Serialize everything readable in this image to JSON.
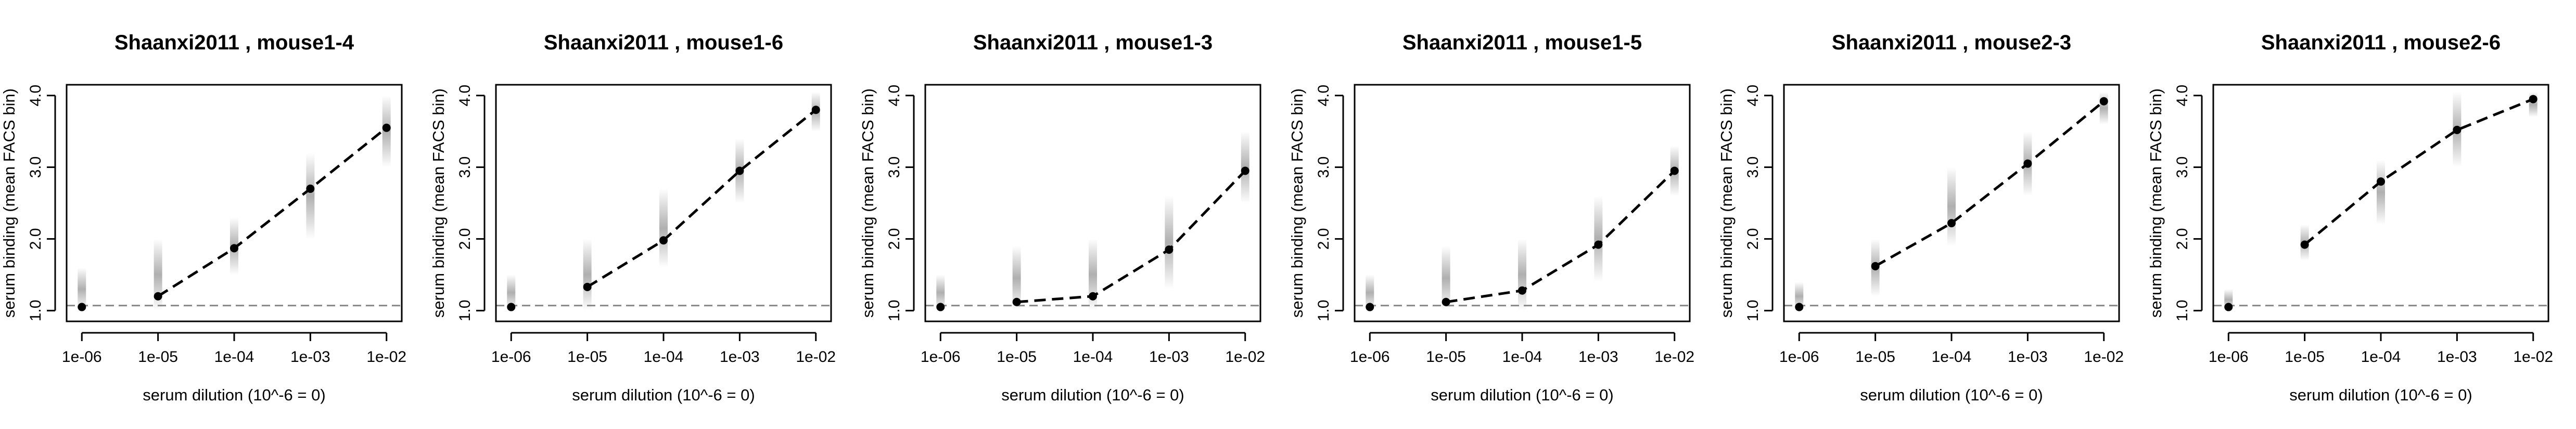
{
  "colors": {
    "line": "#000000",
    "point": "#000000",
    "reference": "#888888",
    "distribution": "#6e6e6e",
    "frame": "#000000",
    "background": "#ffffff"
  },
  "chart_data": [
    {
      "type": "line",
      "title": "Shaanxi2011 , mouse1-4",
      "xlabel": "serum dilution (10^-6 = 0)",
      "ylabel": "serum binding (mean FACS bin)",
      "x": [
        -6,
        -5,
        -4,
        -3,
        -2
      ],
      "x_tick_labels": [
        "1e-06",
        "1e-05",
        "1e-04",
        "1e-03",
        "1e-02"
      ],
      "y_ticks": [
        "1.0",
        "2.0",
        "3.0",
        "4.0"
      ],
      "xlim": [
        -6.2,
        -1.8
      ],
      "ylim": [
        0.85,
        4.15
      ],
      "series": [
        {
          "values": [
            1.05,
            1.2,
            1.87,
            2.7,
            3.55
          ],
          "ranges": [
            [
              1.0,
              1.6
            ],
            [
              1.0,
              2.0
            ],
            [
              1.5,
              2.3
            ],
            [
              2.0,
              3.2
            ],
            [
              3.0,
              4.0
            ]
          ]
        }
      ],
      "reference_y": 1.07,
      "grid": false
    },
    {
      "type": "line",
      "title": "Shaanxi2011 , mouse1-6",
      "xlabel": "serum dilution (10^-6 = 0)",
      "ylabel": "serum binding (mean FACS bin)",
      "x": [
        -6,
        -5,
        -4,
        -3,
        -2
      ],
      "x_tick_labels": [
        "1e-06",
        "1e-05",
        "1e-04",
        "1e-03",
        "1e-02"
      ],
      "y_ticks": [
        "1.0",
        "2.0",
        "3.0",
        "4.0"
      ],
      "xlim": [
        -6.2,
        -1.8
      ],
      "ylim": [
        0.85,
        4.15
      ],
      "series": [
        {
          "values": [
            1.05,
            1.33,
            1.98,
            2.95,
            3.8
          ],
          "ranges": [
            [
              1.0,
              1.5
            ],
            [
              1.0,
              2.0
            ],
            [
              1.6,
              2.7
            ],
            [
              2.5,
              3.4
            ],
            [
              3.5,
              4.05
            ]
          ]
        }
      ],
      "reference_y": 1.07,
      "grid": false
    },
    {
      "type": "line",
      "title": "Shaanxi2011 , mouse1-3",
      "xlabel": "serum dilution (10^-6 = 0)",
      "ylabel": "serum binding (mean FACS bin)",
      "x": [
        -6,
        -5,
        -4,
        -3,
        -2
      ],
      "x_tick_labels": [
        "1e-06",
        "1e-05",
        "1e-04",
        "1e-03",
        "1e-02"
      ],
      "y_ticks": [
        "1.0",
        "2.0",
        "3.0",
        "4.0"
      ],
      "xlim": [
        -6.2,
        -1.8
      ],
      "ylim": [
        0.85,
        4.15
      ],
      "series": [
        {
          "values": [
            1.05,
            1.12,
            1.2,
            1.85,
            2.95
          ],
          "ranges": [
            [
              1.0,
              1.5
            ],
            [
              1.0,
              1.9
            ],
            [
              1.0,
              2.0
            ],
            [
              1.3,
              2.6
            ],
            [
              2.5,
              3.5
            ]
          ]
        }
      ],
      "reference_y": 1.07,
      "grid": false
    },
    {
      "type": "line",
      "title": "Shaanxi2011 , mouse1-5",
      "xlabel": "serum dilution (10^-6 = 0)",
      "ylabel": "serum binding (mean FACS bin)",
      "x": [
        -6,
        -5,
        -4,
        -3,
        -2
      ],
      "x_tick_labels": [
        "1e-06",
        "1e-05",
        "1e-04",
        "1e-03",
        "1e-02"
      ],
      "y_ticks": [
        "1.0",
        "2.0",
        "3.0",
        "4.0"
      ],
      "xlim": [
        -6.2,
        -1.8
      ],
      "ylim": [
        0.85,
        4.15
      ],
      "series": [
        {
          "values": [
            1.05,
            1.12,
            1.28,
            1.92,
            2.95
          ],
          "ranges": [
            [
              1.0,
              1.5
            ],
            [
              1.0,
              1.9
            ],
            [
              1.0,
              2.0
            ],
            [
              1.4,
              2.6
            ],
            [
              2.6,
              3.3
            ]
          ]
        }
      ],
      "reference_y": 1.07,
      "grid": false
    },
    {
      "type": "line",
      "title": "Shaanxi2011 , mouse2-3",
      "xlabel": "serum dilution (10^-6 = 0)",
      "ylabel": "serum binding (mean FACS bin)",
      "x": [
        -6,
        -5,
        -4,
        -3,
        -2
      ],
      "x_tick_labels": [
        "1e-06",
        "1e-05",
        "1e-04",
        "1e-03",
        "1e-02"
      ],
      "y_ticks": [
        "1.0",
        "2.0",
        "3.0",
        "4.0"
      ],
      "xlim": [
        -6.2,
        -1.8
      ],
      "ylim": [
        0.85,
        4.15
      ],
      "series": [
        {
          "values": [
            1.05,
            1.62,
            2.22,
            3.05,
            3.92
          ],
          "ranges": [
            [
              1.0,
              1.4
            ],
            [
              1.2,
              2.0
            ],
            [
              1.9,
              3.0
            ],
            [
              2.6,
              3.5
            ],
            [
              3.6,
              4.05
            ]
          ]
        }
      ],
      "reference_y": 1.07,
      "grid": false
    },
    {
      "type": "line",
      "title": "Shaanxi2011 , mouse2-6",
      "xlabel": "serum dilution (10^-6 = 0)",
      "ylabel": "serum binding (mean FACS bin)",
      "x": [
        -6,
        -5,
        -4,
        -3,
        -2
      ],
      "x_tick_labels": [
        "1e-06",
        "1e-05",
        "1e-04",
        "1e-03",
        "1e-02"
      ],
      "y_ticks": [
        "1.0",
        "2.0",
        "3.0",
        "4.0"
      ],
      "xlim": [
        -6.2,
        -1.8
      ],
      "ylim": [
        0.85,
        4.15
      ],
      "series": [
        {
          "values": [
            1.05,
            1.92,
            2.8,
            3.52,
            3.95
          ],
          "ranges": [
            [
              1.0,
              1.3
            ],
            [
              1.7,
              2.2
            ],
            [
              2.2,
              3.1
            ],
            [
              3.0,
              4.05
            ],
            [
              3.7,
              4.05
            ]
          ]
        }
      ],
      "reference_y": 1.07,
      "grid": false
    }
  ]
}
